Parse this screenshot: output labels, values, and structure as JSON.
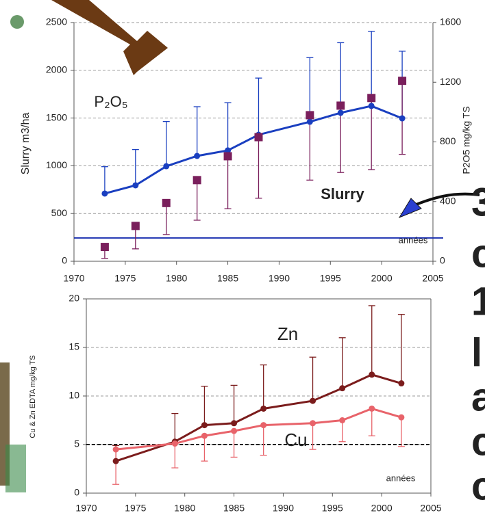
{
  "chart_data": [
    {
      "type": "line",
      "ylabel": "Slurry m3/ha",
      "y2label": "P2O5 mg/kg TS",
      "x": [
        1973,
        1976,
        1979,
        1982,
        1985,
        1988,
        1993,
        1996,
        1999,
        2002
      ],
      "xlim": [
        1970,
        2005
      ],
      "xticks": [
        1970,
        1975,
        1980,
        1985,
        1990,
        1995,
        2000,
        2005
      ],
      "ylim": [
        0,
        2500
      ],
      "yticks": [
        0,
        500,
        1000,
        1500,
        2000,
        2500
      ],
      "y2lim": [
        0,
        1600
      ],
      "y2ticks": [
        0,
        400,
        800,
        1200,
        1600
      ],
      "grid": true,
      "hline": 244,
      "hline_color": "#1a2fb0",
      "hline_dashed": false,
      "annotations": [
        "années"
      ],
      "series": [
        {
          "name": "P₂O₅",
          "color": "#1a3fc0",
          "axis": "y2",
          "marker": "circle",
          "line": true,
          "values": [
            454,
            509,
            637,
            706,
            743,
            848,
            935,
            995,
            1041,
            958
          ],
          "yerr": [
            180,
            240,
            300,
            330,
            320,
            380,
            430,
            470,
            500,
            450
          ],
          "err_dir": "up"
        },
        {
          "name": "Slurry",
          "color": "#7a1f5c",
          "marker": "square",
          "line": false,
          "values": [
            150,
            370,
            610,
            850,
            1100,
            1300,
            1530,
            1630,
            1710,
            1890
          ],
          "yerr": [
            120,
            240,
            330,
            420,
            550,
            640,
            680,
            700,
            750,
            770
          ],
          "err_dir": "down"
        }
      ]
    },
    {
      "type": "line",
      "ylabel": "Cu & Zn EDTA mg/kg TS",
      "x": [
        1973,
        1979,
        1982,
        1985,
        1988,
        1993,
        1996,
        1999,
        2002
      ],
      "xlim": [
        1970,
        2005
      ],
      "xticks": [
        1970,
        1975,
        1980,
        1985,
        1990,
        1995,
        2000,
        2005
      ],
      "ylim": [
        0,
        20
      ],
      "yticks": [
        0,
        5,
        10,
        15,
        20
      ],
      "grid": true,
      "hline": 5,
      "hline_color": "#000000",
      "hline_dashed": true,
      "annotations": [
        "années"
      ],
      "series": [
        {
          "name": "Zn",
          "color": "#7b1c1c",
          "marker": "circle",
          "line": true,
          "values": [
            3.3,
            5.3,
            7.0,
            7.2,
            8.7,
            9.5,
            10.8,
            12.2,
            11.3
          ],
          "yerr": [
            1.6,
            2.9,
            4.0,
            3.9,
            4.5,
            4.5,
            5.2,
            7.1,
            7.1
          ],
          "err_dir": "up"
        },
        {
          "name": "Cu",
          "color": "#e8636a",
          "marker": "circle",
          "line": true,
          "values": [
            4.5,
            5.1,
            5.9,
            6.4,
            7.0,
            7.2,
            7.5,
            8.7,
            7.8
          ],
          "yerr": [
            3.6,
            2.5,
            2.6,
            2.7,
            3.1,
            2.7,
            2.2,
            2.8,
            3.0
          ],
          "err_dir": "down"
        }
      ]
    }
  ],
  "side_text": [
    "3",
    "c",
    "1",
    "l",
    "a",
    "c",
    "c"
  ]
}
